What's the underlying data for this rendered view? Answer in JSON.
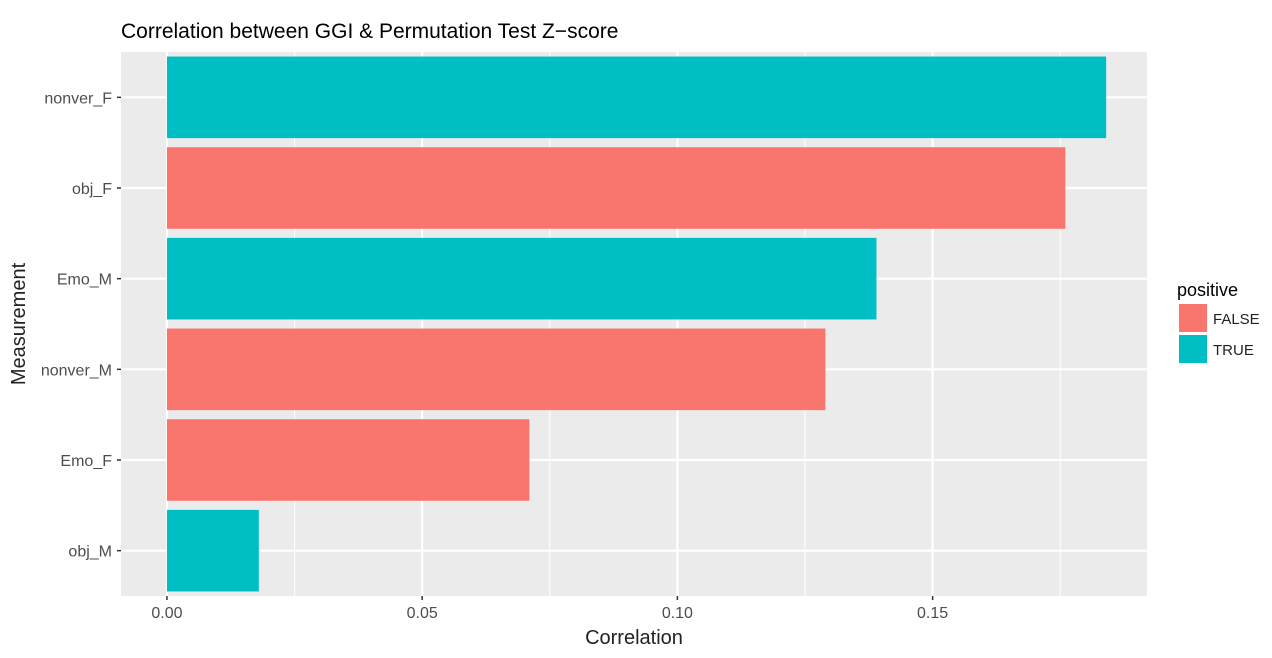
{
  "chart_data": {
    "type": "bar",
    "orientation": "horizontal",
    "title": "Correlation between GGI & Permutation Test Z−score",
    "xlabel": "Correlation",
    "ylabel": "Measurement",
    "xlim": [
      -0.009,
      0.192
    ],
    "x_ticks": [
      "0.00",
      "0.05",
      "0.10",
      "0.15"
    ],
    "categories": [
      "obj_M",
      "Emo_F",
      "nonver_M",
      "Emo_M",
      "obj_F",
      "nonver_F"
    ],
    "values": [
      0.018,
      0.071,
      0.129,
      0.139,
      0.176,
      0.184
    ],
    "fill_group": [
      "TRUE",
      "FALSE",
      "FALSE",
      "TRUE",
      "FALSE",
      "TRUE"
    ],
    "grid": true,
    "legend": {
      "title": "positive",
      "placement": "right",
      "entries": [
        {
          "label": "FALSE",
          "color": "#F8766D"
        },
        {
          "label": "TRUE",
          "color": "#00BFC4"
        }
      ]
    },
    "colors": {
      "FALSE": "#F8766D",
      "TRUE": "#00BFC4",
      "panel": "#EBEBEB",
      "grid": "#FFFFFF"
    }
  }
}
